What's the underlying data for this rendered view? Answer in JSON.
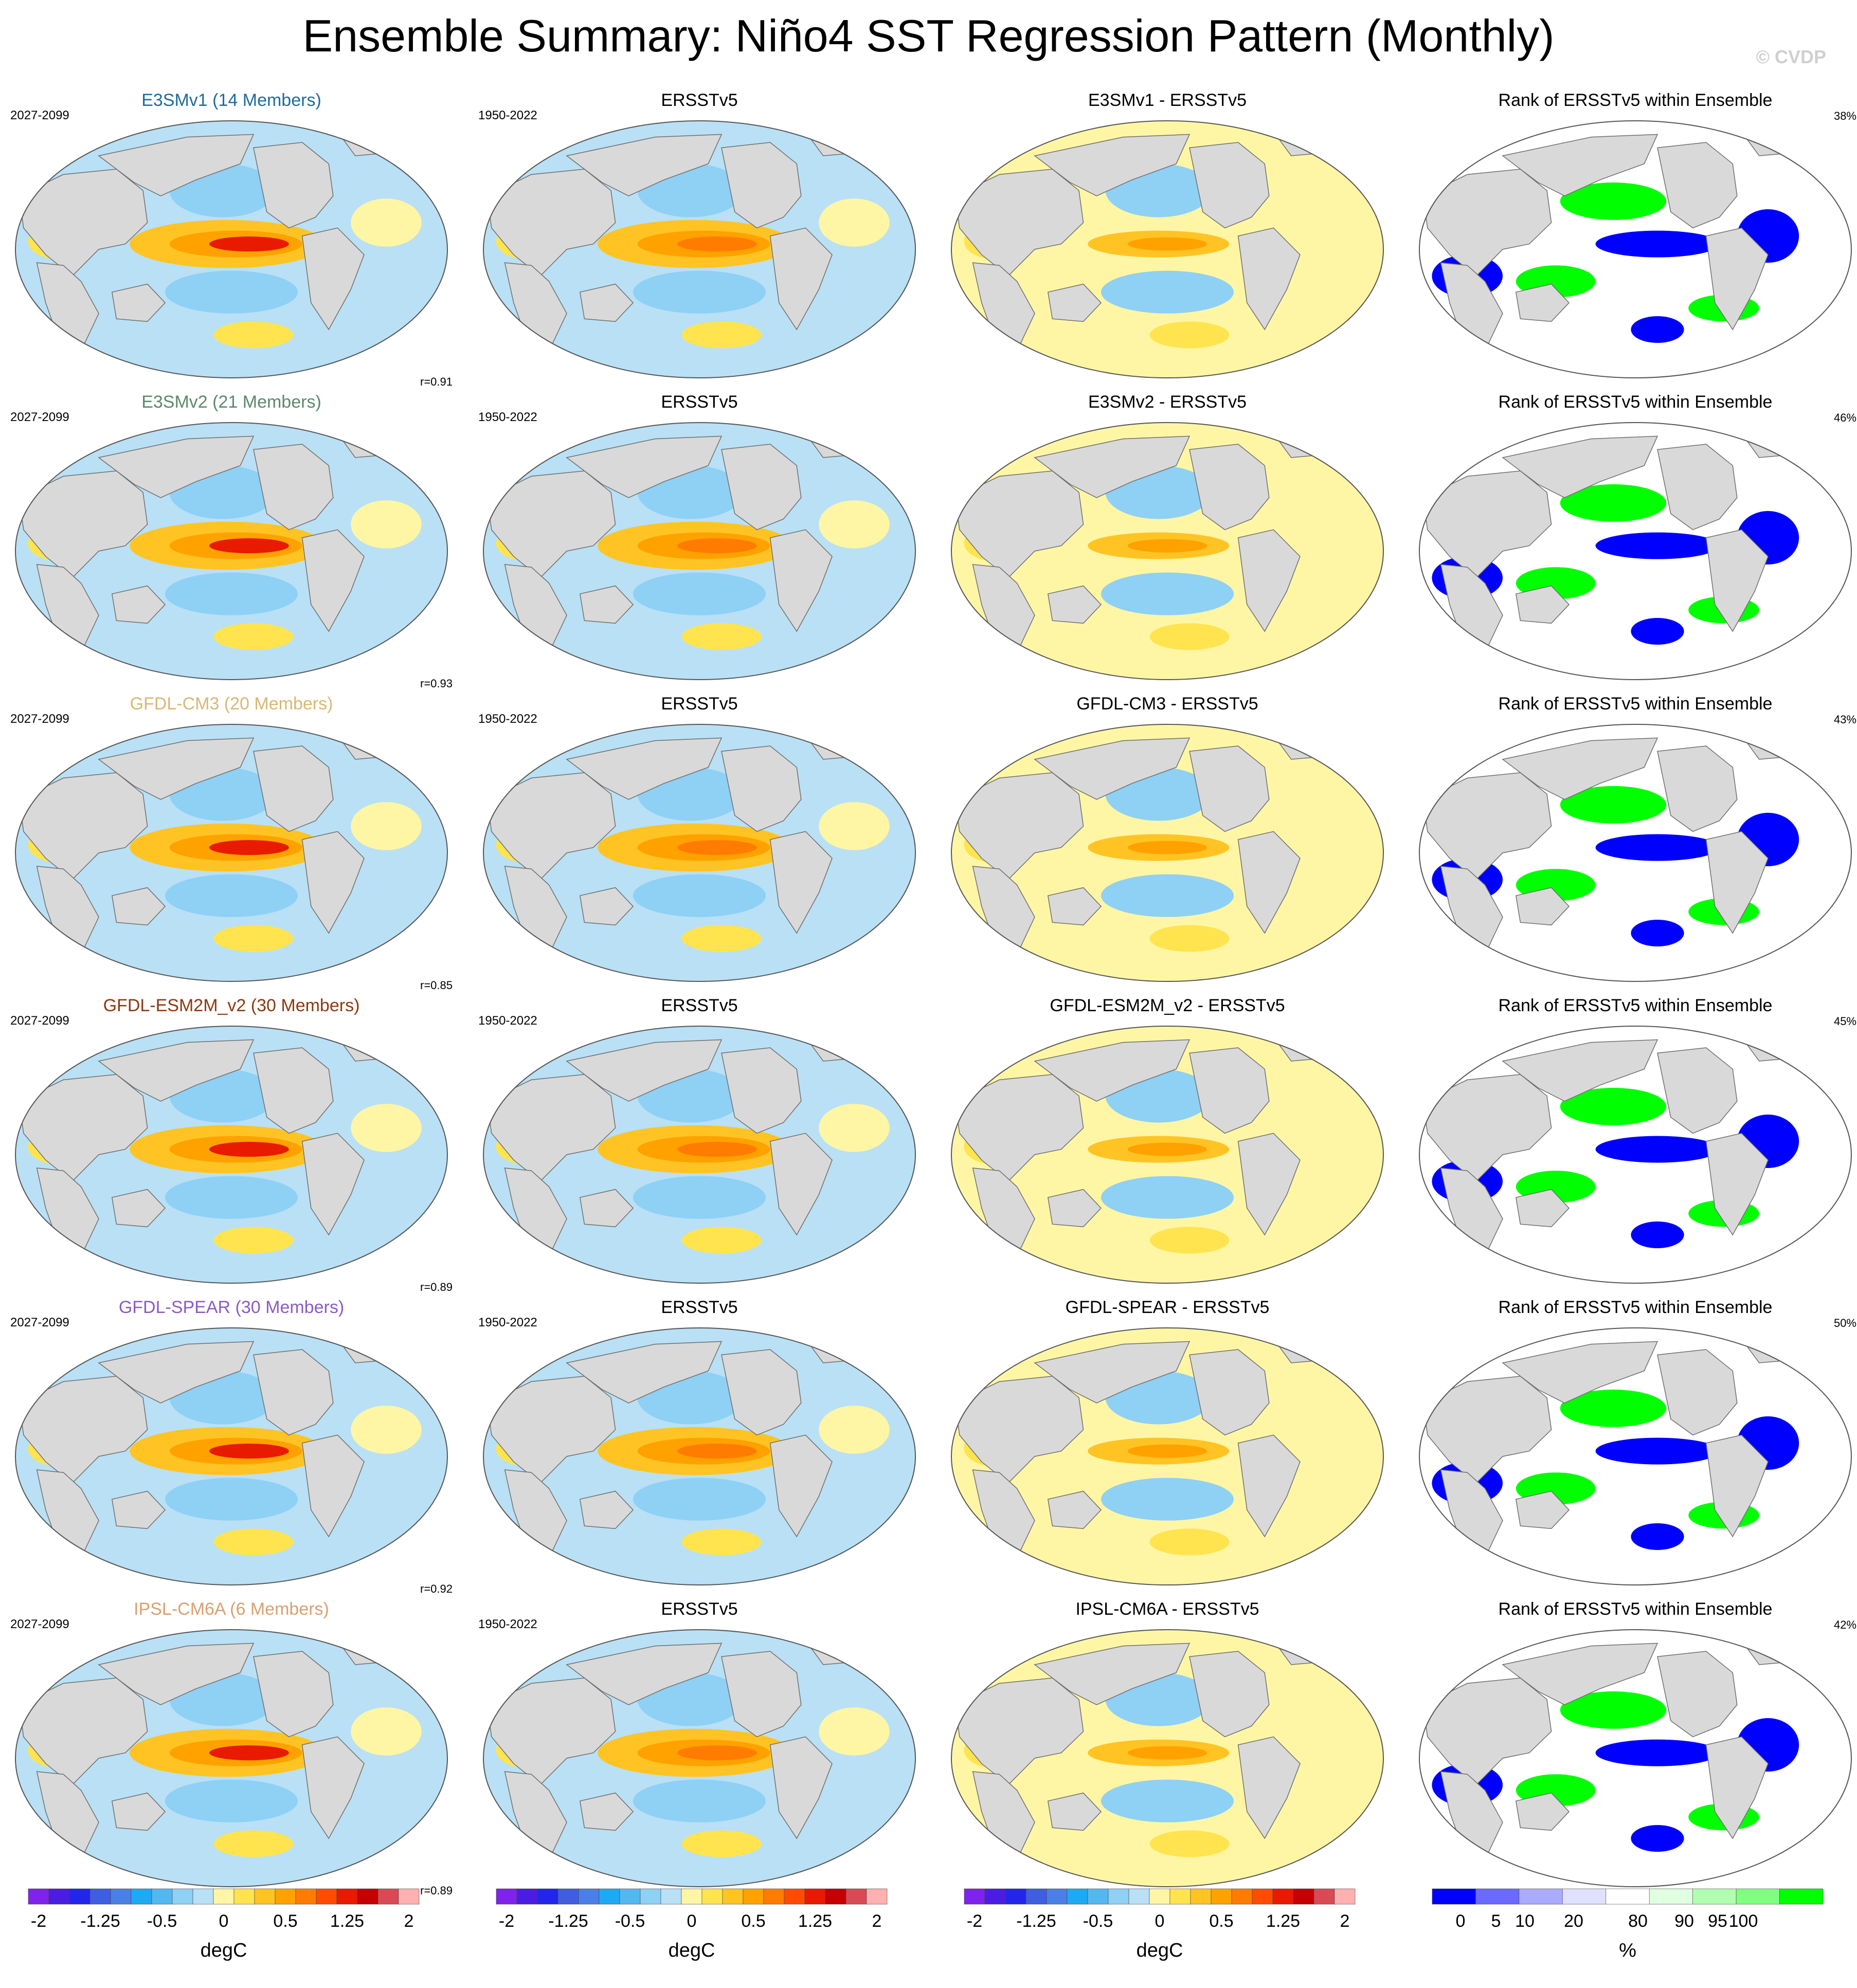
{
  "title": "Ensemble Summary: Niño4 SST Regression Pattern (Monthly)",
  "watermark": "© CVDP",
  "chart_data": {
    "type": "heatmap",
    "colorbar_sst": {
      "units": "degC",
      "tick_labels": [
        "-2",
        "-1.25",
        "-0.5",
        "0",
        "0.5",
        "1.25",
        "2"
      ],
      "colors": [
        "#7f22ea",
        "#4b1de0",
        "#2226e8",
        "#3f5ee0",
        "#4a7fe6",
        "#1eaaf2",
        "#54b8f0",
        "#8fd0f5",
        "#b9e0f5",
        "#fff6a5",
        "#ffe44f",
        "#ffc424",
        "#ffa200",
        "#ff7c00",
        "#ff4c00",
        "#e81a00",
        "#c40000",
        "#d94a55",
        "#ffb0b0"
      ]
    },
    "colorbar_rank": {
      "units": "%",
      "tick_labels": [
        "0",
        "5",
        "10",
        "20",
        "80",
        "90",
        "95",
        "100"
      ],
      "colors": [
        "#0000ff",
        "#6a6aff",
        "#aaaaff",
        "#e0e0ff",
        "#ffffff",
        "#e0ffe0",
        "#b0ffb0",
        "#80ff80",
        "#00ff00"
      ]
    },
    "rows": [
      {
        "model": "E3SMv1 (14 Members)",
        "model_color": "#1f6b9c",
        "years": "2027-2099",
        "obs": "ERSSTv5",
        "obs_years": "1950-2022",
        "diff": "E3SMv1 - ERSSTv5",
        "rank": "Rank of ERSSTv5 within Ensemble",
        "rank_pct": "38%",
        "corr": "r=0.91"
      },
      {
        "model": "E3SMv2 (21 Members)",
        "model_color": "#5a8a6a",
        "years": "2027-2099",
        "obs": "ERSSTv5",
        "obs_years": "1950-2022",
        "diff": "E3SMv2 - ERSSTv5",
        "rank": "Rank of ERSSTv5 within Ensemble",
        "rank_pct": "46%",
        "corr": "r=0.93"
      },
      {
        "model": "GFDL-CM3 (20 Members)",
        "model_color": "#d9b872",
        "years": "2027-2099",
        "obs": "ERSSTv5",
        "obs_years": "1950-2022",
        "diff": "GFDL-CM3 - ERSSTv5",
        "rank": "Rank of ERSSTv5 within Ensemble",
        "rank_pct": "43%",
        "corr": "r=0.85"
      },
      {
        "model": "GFDL-ESM2M_v2 (30 Members)",
        "model_color": "#8b3a0f",
        "years": "2027-2099",
        "obs": "ERSSTv5",
        "obs_years": "1950-2022",
        "diff": "GFDL-ESM2M_v2 - ERSSTv5",
        "rank": "Rank of ERSSTv5 within Ensemble",
        "rank_pct": "45%",
        "corr": "r=0.89"
      },
      {
        "model": "GFDL-SPEAR (30 Members)",
        "model_color": "#8a5cc4",
        "years": "2027-2099",
        "obs": "ERSSTv5",
        "obs_years": "1950-2022",
        "diff": "GFDL-SPEAR - ERSSTv5",
        "rank": "Rank of ERSSTv5 within Ensemble",
        "rank_pct": "50%",
        "corr": "r=0.92"
      },
      {
        "model": "IPSL-CM6A (6 Members)",
        "model_color": "#d9a070",
        "years": "2027-2099",
        "obs": "ERSSTv5",
        "obs_years": "1950-2022",
        "diff": "IPSL-CM6A - ERSSTv5",
        "rank": "Rank of ERSSTv5 within Ensemble",
        "rank_pct": "42%",
        "corr": "r=0.89"
      }
    ]
  }
}
